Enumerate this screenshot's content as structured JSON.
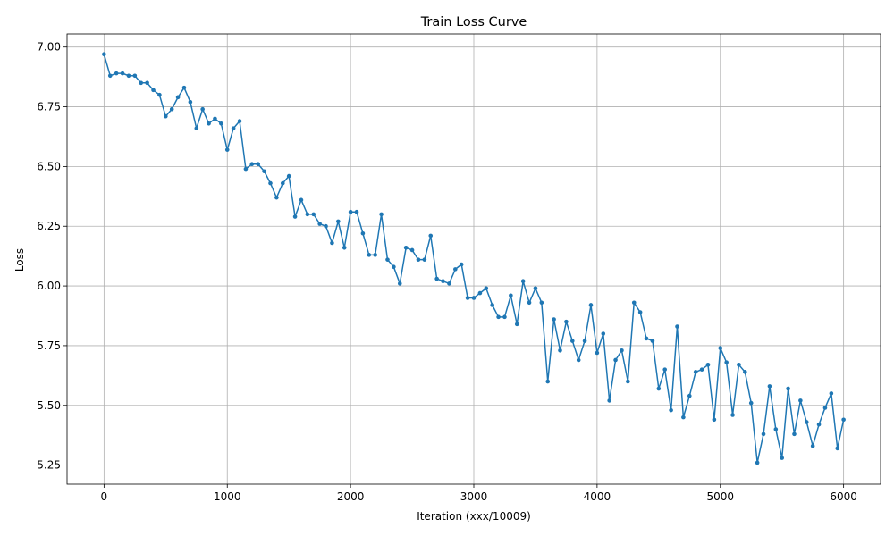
{
  "chart_data": {
    "type": "line",
    "title": "Train Loss Curve",
    "xlabel": "Iteration (xxx/10009)",
    "ylabel": "Loss",
    "xlim": [
      -300,
      6300
    ],
    "ylim": [
      5.17,
      7.055
    ],
    "xticks": [
      0,
      1000,
      2000,
      3000,
      4000,
      5000,
      6000
    ],
    "xtick_labels": [
      "0",
      "1000",
      "2000",
      "3000",
      "4000",
      "5000",
      "6000"
    ],
    "yticks": [
      5.25,
      5.5,
      5.75,
      6.0,
      6.25,
      6.5,
      6.75,
      7.0
    ],
    "ytick_labels": [
      "5.25",
      "5.50",
      "5.75",
      "6.00",
      "6.25",
      "6.50",
      "6.75",
      "7.00"
    ],
    "grid": true,
    "color": "#1f77b4",
    "marker": "circle",
    "series": [
      {
        "x": [
          0,
          50,
          100,
          150,
          200,
          250,
          300,
          350,
          400,
          450,
          500,
          550,
          600,
          650,
          700,
          750,
          800,
          850,
          900,
          950,
          1000,
          1050,
          1100,
          1150,
          1200,
          1250,
          1300,
          1350,
          1400,
          1450,
          1500,
          1550,
          1600,
          1650,
          1700,
          1750,
          1800,
          1850,
          1900,
          1950,
          2000,
          2050,
          2100,
          2150,
          2200,
          2250,
          2300,
          2350,
          2400,
          2450,
          2500,
          2550,
          2600,
          2650,
          2700,
          2750,
          2800,
          2850,
          2900,
          2950,
          3000,
          3050,
          3100,
          3150,
          3200,
          3250,
          3300,
          3350,
          3400,
          3450,
          3500,
          3550,
          3600,
          3650,
          3700,
          3750,
          3800,
          3850,
          3900,
          3950,
          4000,
          4050,
          4100,
          4150,
          4200,
          4250,
          4300,
          4350,
          4400,
          4450,
          4500,
          4550,
          4600,
          4650,
          4700,
          4750,
          4800,
          4850,
          4900,
          4950,
          5000,
          5050,
          5100,
          5150,
          5200,
          5250,
          5300,
          5350,
          5400,
          5450,
          5500,
          5550,
          5600,
          5650,
          5700,
          5750,
          5800,
          5850,
          5900,
          5950,
          6000
        ],
        "values": [
          6.97,
          6.88,
          6.89,
          6.89,
          6.88,
          6.88,
          6.85,
          6.85,
          6.82,
          6.8,
          6.71,
          6.74,
          6.79,
          6.83,
          6.77,
          6.66,
          6.74,
          6.68,
          6.7,
          6.68,
          6.57,
          6.66,
          6.69,
          6.49,
          6.51,
          6.51,
          6.48,
          6.43,
          6.37,
          6.43,
          6.46,
          6.29,
          6.36,
          6.3,
          6.3,
          6.26,
          6.25,
          6.18,
          6.27,
          6.16,
          6.31,
          6.31,
          6.22,
          6.13,
          6.13,
          6.3,
          6.11,
          6.08,
          6.01,
          6.16,
          6.15,
          6.11,
          6.11,
          6.21,
          6.03,
          6.02,
          6.01,
          6.07,
          6.09,
          5.95,
          5.95,
          5.97,
          5.99,
          5.92,
          5.87,
          5.87,
          5.96,
          5.84,
          6.02,
          5.93,
          5.99,
          5.93,
          5.6,
          5.86,
          5.73,
          5.85,
          5.77,
          5.69,
          5.77,
          5.92,
          5.72,
          5.8,
          5.52,
          5.69,
          5.73,
          5.6,
          5.93,
          5.89,
          5.78,
          5.77,
          5.57,
          5.65,
          5.48,
          5.83,
          5.45,
          5.54,
          5.64,
          5.65,
          5.67,
          5.44,
          5.74,
          5.68,
          5.46,
          5.67,
          5.64,
          5.51,
          5.26,
          5.38,
          5.58,
          5.4,
          5.28,
          5.57,
          5.38,
          5.52,
          5.43,
          5.33,
          5.42,
          5.49,
          5.55,
          5.32,
          5.44
        ]
      }
    ]
  }
}
